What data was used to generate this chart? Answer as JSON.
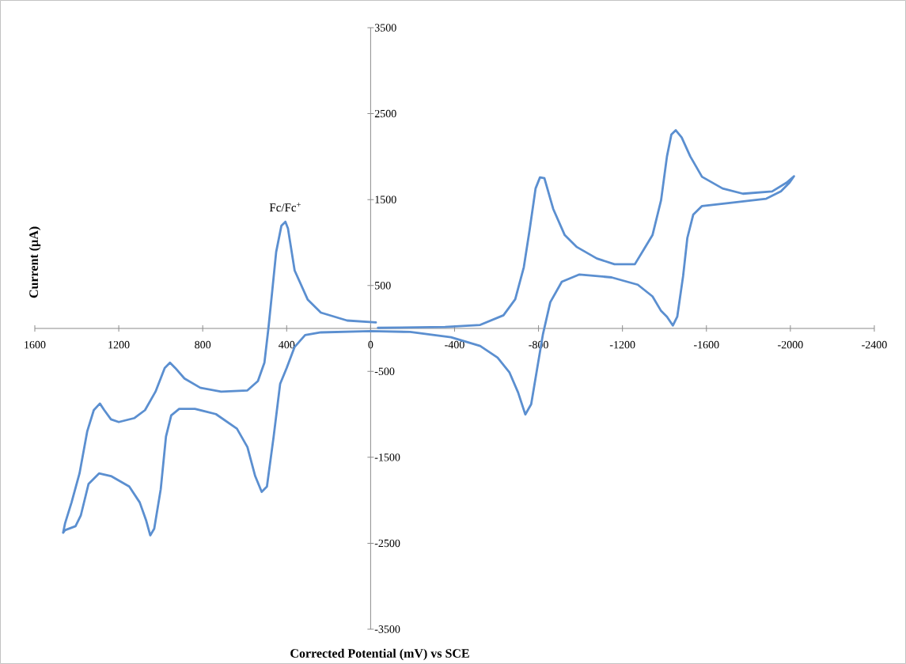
{
  "chart_data": {
    "type": "line",
    "xlabel": "Corrected Potential (mV) vs SCE",
    "ylabel": "Current (µA)",
    "xlim": [
      1600,
      -2400
    ],
    "ylim": [
      -3500,
      3500
    ],
    "xticks": [
      1600,
      1200,
      800,
      400,
      0,
      -400,
      -800,
      -1200,
      -1600,
      -2000,
      -2400
    ],
    "yticks": [
      -3500,
      -2500,
      -1500,
      -500,
      500,
      1500,
      2500,
      3500
    ],
    "annotations": [
      {
        "text": "Fc/Fc$^{+}$",
        "x": 406,
        "y": 1242
      }
    ],
    "series": [
      {
        "color": "#5b8fd0",
        "x": [
          -25,
          112,
          237,
          300,
          362,
          394,
          406,
          425,
          450,
          469,
          487,
          506,
          537,
          587,
          712,
          812,
          887,
          931,
          956,
          981,
          1025,
          1075,
          1125,
          1200,
          1237,
          1269,
          1290,
          1319,
          1350,
          1387,
          1425,
          1456,
          1465,
          1456,
          1406,
          1381,
          1344,
          1294,
          1237,
          1150,
          1100,
          1069,
          1050,
          1031,
          1000,
          975,
          950,
          912,
          837,
          737,
          637,
          587,
          550,
          519,
          494,
          462,
          431,
          400,
          362,
          312,
          237,
          0,
          -188,
          -383,
          -522,
          -605,
          -661,
          -703,
          -737,
          -765,
          -793,
          -821,
          -856,
          -911,
          -995,
          -1148,
          -1273,
          -1343,
          -1384,
          -1412,
          -1440,
          -1461,
          -1489,
          -1509,
          -1537,
          -1579,
          -1704,
          -1885,
          -1955,
          -1996,
          -2017,
          -1982,
          -1913,
          -1774,
          -1677,
          -1579,
          -1523,
          -1482,
          -1454,
          -1433,
          -1412,
          -1384,
          -1343,
          -1301,
          -1259,
          -1162,
          -1078,
          -981,
          -925,
          -870,
          -828,
          -807,
          -786,
          -758,
          -730,
          -689,
          -633,
          -522,
          -355,
          -35
        ],
        "values": [
          70,
          92,
          184,
          337,
          675,
          1166,
          1242,
          1196,
          890,
          429,
          0,
          -399,
          -613,
          -721,
          -736,
          -690,
          -583,
          -460,
          -399,
          -460,
          -736,
          -951,
          -1043,
          -1089,
          -1058,
          -951,
          -874,
          -951,
          -1196,
          -1687,
          -2025,
          -2270,
          -2377,
          -2347,
          -2301,
          -2178,
          -1810,
          -1687,
          -1718,
          -1840,
          -2025,
          -2239,
          -2408,
          -2331,
          -1871,
          -1258,
          -1012,
          -936,
          -936,
          -997,
          -1166,
          -1380,
          -1718,
          -1902,
          -1840,
          -1258,
          -644,
          -460,
          -215,
          -77,
          -46,
          -31,
          -41,
          -102,
          -204,
          -339,
          -509,
          -747,
          -1001,
          -882,
          -475,
          -68,
          305,
          543,
          628,
          594,
          509,
          373,
          204,
          136,
          34,
          136,
          611,
          1052,
          1323,
          1425,
          1459,
          1510,
          1595,
          1697,
          1771,
          1697,
          1595,
          1568,
          1629,
          1765,
          2002,
          2223,
          2307,
          2257,
          2002,
          1493,
          1086,
          916,
          747,
          747,
          814,
          950,
          1086,
          1391,
          1748,
          1758,
          1629,
          1154,
          713,
          339,
          153,
          41,
          17,
          7
        ]
      }
    ]
  }
}
